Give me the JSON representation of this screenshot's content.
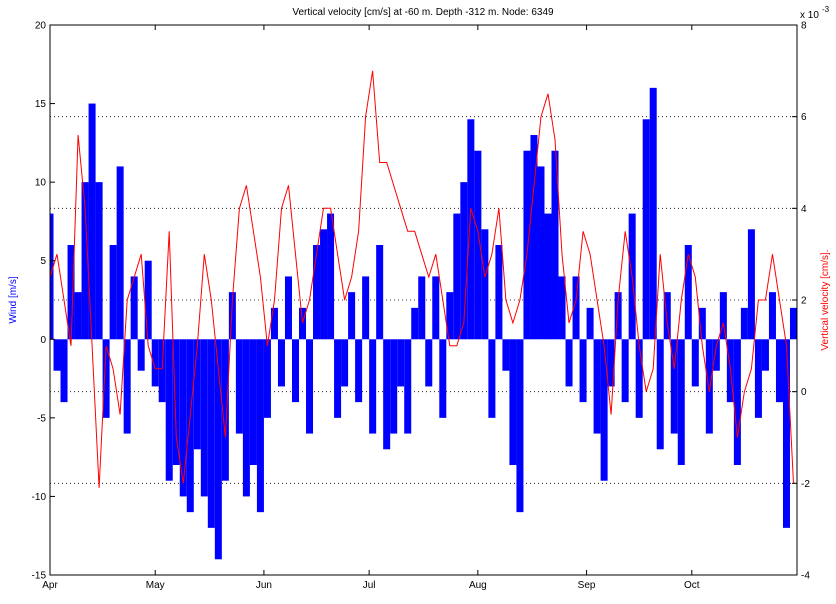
{
  "chart_data": {
    "type": "bar",
    "title": "Vertical velocity [cm/s] at -60 m. Depth -312 m. Node: 6349",
    "ylabel": "Wind [m/s]",
    "y2label": "Vertical velocity [cm/s].",
    "y2_multiplier": "x 10",
    "y2_exponent": "-3",
    "xlim": [
      0,
      213
    ],
    "xticks": [
      {
        "value": 0,
        "label": "Apr"
      },
      {
        "value": 30,
        "label": "May"
      },
      {
        "value": 61,
        "label": "Jun"
      },
      {
        "value": 91,
        "label": "Jul"
      },
      {
        "value": 122,
        "label": "Aug"
      },
      {
        "value": 153,
        "label": "Sep"
      },
      {
        "value": 183,
        "label": "Oct"
      }
    ],
    "ylim": [
      -15,
      20
    ],
    "yticks": [
      -15,
      -10,
      -5,
      0,
      5,
      10,
      15,
      20
    ],
    "y2lim": [
      -4,
      8
    ],
    "y2ticks": [
      -4,
      -2,
      0,
      2,
      4,
      6,
      8
    ],
    "grid": "y2",
    "x": [
      0,
      2,
      4,
      6,
      8,
      10,
      12,
      14,
      16,
      18,
      20,
      22,
      24,
      26,
      28,
      30,
      32,
      34,
      36,
      38,
      40,
      42,
      44,
      46,
      48,
      50,
      52,
      54,
      56,
      58,
      60,
      62,
      64,
      66,
      68,
      70,
      72,
      74,
      76,
      78,
      80,
      82,
      84,
      86,
      88,
      90,
      92,
      94,
      96,
      98,
      100,
      102,
      104,
      106,
      108,
      110,
      112,
      114,
      116,
      118,
      120,
      122,
      124,
      126,
      128,
      130,
      132,
      134,
      136,
      138,
      140,
      142,
      144,
      146,
      148,
      150,
      152,
      154,
      156,
      158,
      160,
      162,
      164,
      166,
      168,
      170,
      172,
      174,
      176,
      178,
      180,
      182,
      184,
      186,
      188,
      190,
      192,
      194,
      196,
      198,
      200,
      202,
      204,
      206,
      208,
      210,
      212
    ],
    "series": [
      {
        "type": "bar",
        "axis": "y",
        "color": "#0000ff",
        "values": [
          8,
          -2,
          -4,
          6,
          3,
          10,
          15,
          10,
          -5,
          6,
          11,
          -6,
          4,
          -2,
          5,
          -3,
          -4,
          -9,
          -8,
          -10,
          -11,
          -7,
          -10,
          -12,
          -14,
          -9,
          3,
          -6,
          -10,
          -8,
          -11,
          -5,
          2,
          -3,
          4,
          -4,
          2,
          -6,
          6,
          7,
          8,
          -5,
          -3,
          3,
          -4,
          4,
          -6,
          6,
          -7,
          -6,
          -3,
          -6,
          2,
          4,
          -3,
          4,
          -5,
          3,
          8,
          10,
          14,
          12,
          7,
          -5,
          6,
          -2,
          -8,
          -11,
          12,
          13,
          11,
          8,
          12,
          4,
          -3,
          4,
          -4,
          2,
          -6,
          -9,
          -3,
          3,
          -4,
          8,
          -5,
          14,
          16,
          -7,
          3,
          -6,
          -8,
          6,
          -3,
          2,
          -6,
          -2,
          3,
          -4,
          -8,
          2,
          7,
          -5,
          -2,
          3,
          -4,
          -12,
          2
        ]
      },
      {
        "type": "line",
        "axis": "y2",
        "color": "#ff0000",
        "values": [
          2.5,
          3,
          2,
          1,
          5.6,
          4,
          1,
          -2.1,
          1,
          0.5,
          -0.5,
          2,
          2.5,
          3,
          1,
          0.5,
          0.5,
          3.5,
          -1,
          -2,
          -0.5,
          1,
          3,
          2,
          0.5,
          -1,
          2,
          4,
          4.5,
          3.5,
          2.5,
          1,
          2,
          4,
          4.5,
          3,
          1.5,
          2,
          3,
          4,
          4,
          3,
          2,
          2.5,
          3.5,
          6,
          7,
          5,
          5,
          4.5,
          4,
          3.5,
          3.5,
          3,
          2.5,
          3,
          2,
          1,
          1,
          1.5,
          4,
          3.5,
          2.5,
          3,
          4,
          2,
          1.5,
          2,
          3,
          4.5,
          6,
          6.5,
          5.5,
          3,
          1.5,
          2,
          3.5,
          3,
          2,
          1,
          -0.5,
          2,
          3.5,
          2.5,
          1,
          0,
          0.5,
          3,
          1.5,
          0.5,
          2,
          3,
          2.5,
          1,
          0,
          1,
          1.5,
          0.5,
          -1,
          0,
          0.5,
          2,
          2,
          3,
          2,
          1,
          -2
        ]
      }
    ]
  }
}
